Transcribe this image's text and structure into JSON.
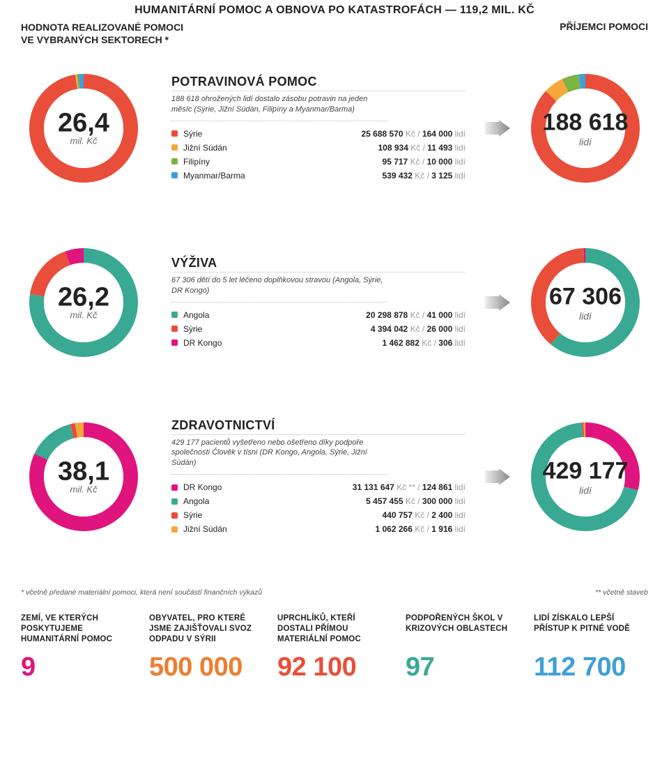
{
  "colors": {
    "red": "#e94e3a",
    "teal": "#3aa994",
    "yellow": "#f4a83b",
    "orange": "#ef7d2f",
    "green": "#7cb342",
    "blue": "#3f9fd9",
    "magenta": "#e0147d",
    "gray_text": "#555555",
    "light_text": "#999999"
  },
  "header": {
    "title": "HUMANITÁRNÍ POMOC A OBNOVA PO KATASTROFÁCH — 119,2 MIL. KČ",
    "left_line1": "HODNOTA REALIZOVANÉ POMOCI",
    "left_line2": "VE VYBRANÝCH SEKTORECH *",
    "right": "PŘÍJEMCI POMOCI"
  },
  "sections": [
    {
      "value": "26,4",
      "value_unit": "mil. Kč",
      "value_slices": [
        {
          "color": "#e94e3a",
          "pct": 97.5
        },
        {
          "color": "#f4a83b",
          "pct": 0.5
        },
        {
          "color": "#7cb342",
          "pct": 0.5
        },
        {
          "color": "#3f9fd9",
          "pct": 1.5
        }
      ],
      "title": "POTRAVINOVÁ POMOC",
      "desc": "188 618 ohrožených lidí dostalo zásobu potravin na jeden měsíc (Sýrie, Jižní Súdán, Filipíny a Myanmar/Barma)",
      "rows": [
        {
          "sw": "#e94e3a",
          "country": "Sýrie",
          "kc": "25 688 570",
          "lidi": "164 000"
        },
        {
          "sw": "#f4a83b",
          "country": "Jižní Súdán",
          "kc": "108 934",
          "lidi": "11 493"
        },
        {
          "sw": "#7cb342",
          "country": "Filipíny",
          "kc": "95 717",
          "lidi": "10 000"
        },
        {
          "sw": "#3f9fd9",
          "country": "Myanmar/Barma",
          "kc": "539 432",
          "lidi": "3 125"
        }
      ],
      "people": "188 618",
      "people_unit": "lidí",
      "people_slices": [
        {
          "color": "#e94e3a",
          "pct": 87
        },
        {
          "color": "#f4a83b",
          "pct": 6
        },
        {
          "color": "#7cb342",
          "pct": 5
        },
        {
          "color": "#3f9fd9",
          "pct": 2
        }
      ]
    },
    {
      "value": "26,2",
      "value_unit": "mil. Kč",
      "value_slices": [
        {
          "color": "#3aa994",
          "pct": 77.5
        },
        {
          "color": "#e94e3a",
          "pct": 17
        },
        {
          "color": "#e0147d",
          "pct": 5.5
        }
      ],
      "title": "VÝŽIVA",
      "desc": "67 306 dětí do 5 let léčeno doplňkovou stravou (Angola, Sýrie, DR Kongo)",
      "rows": [
        {
          "sw": "#3aa994",
          "country": "Angola",
          "kc": "20 298 878",
          "lidi": "41 000"
        },
        {
          "sw": "#e94e3a",
          "country": "Sýrie",
          "kc": "4 394 042",
          "lidi": "26 000"
        },
        {
          "sw": "#e0147d",
          "country": "DR Kongo",
          "kc": "1 462 882",
          "lidi": "306"
        }
      ],
      "people": "67 306",
      "people_unit": "lidí",
      "people_slices": [
        {
          "color": "#3aa994",
          "pct": 61
        },
        {
          "color": "#e94e3a",
          "pct": 38.5
        },
        {
          "color": "#e0147d",
          "pct": 0.5
        }
      ]
    },
    {
      "value": "38,1",
      "value_unit": "mil. Kč",
      "value_slices": [
        {
          "color": "#e0147d",
          "pct": 82
        },
        {
          "color": "#3aa994",
          "pct": 14
        },
        {
          "color": "#e94e3a",
          "pct": 1.5
        },
        {
          "color": "#f4a83b",
          "pct": 2.5
        }
      ],
      "title": "ZDRAVOTNICTVÍ",
      "desc": "429 177 pacientů vyšetřeno nebo ošetřeno díky podpoře společnosti Člověk v tísni (DR Kongo, Angola, Sýrie, Jižní Súdán)",
      "rows": [
        {
          "sw": "#e0147d",
          "country": "DR Kongo",
          "kc": "31 131 647",
          "kc_sup": "**",
          "lidi": "124 861"
        },
        {
          "sw": "#3aa994",
          "country": "Angola",
          "kc": "5 457 455",
          "lidi": "300 000"
        },
        {
          "sw": "#e94e3a",
          "country": "Sýrie",
          "kc": "440 757",
          "lidi": "2 400"
        },
        {
          "sw": "#f4a83b",
          "country": "Jižní Súdán",
          "kc": "1 062 266",
          "lidi": "1 916"
        }
      ],
      "people": "429 177",
      "people_unit": "lidí",
      "people_slices": [
        {
          "color": "#e0147d",
          "pct": 29
        },
        {
          "color": "#3aa994",
          "pct": 70
        },
        {
          "color": "#e94e3a",
          "pct": 0.5
        },
        {
          "color": "#f4a83b",
          "pct": 0.5
        }
      ]
    }
  ],
  "footnotes": {
    "left": "* včetně předané materiální pomoci, která není součástí finančních výkazů",
    "right": "** včetně staveb"
  },
  "stats": [
    {
      "label": "ZEMÍ, VE KTERÝCH POSKYTUJEME HUMANITÁRNÍ POMOC",
      "num": "9",
      "color": "#e0147d"
    },
    {
      "label": "OBYVATEL, PRO KTERÉ JSME ZAJIŠŤOVALI SVOZ ODPADU V SÝRII",
      "num": "500 000",
      "color": "#ef7d2f"
    },
    {
      "label": "UPRCHLÍKŮ, KTEŘÍ DOSTALI PŘÍMOU MATERIÁLNÍ POMOC",
      "num": "92 100",
      "color": "#e94e3a"
    },
    {
      "label": "PODPOŘENÝCH ŠKOL V KRIZOVÝCH OBLASTECH",
      "num": "97",
      "color": "#3aa994"
    },
    {
      "label": "LIDÍ ZÍSKALO LEPŠÍ PŘÍSTUP K PITNÉ VODĚ",
      "num": "112 700",
      "color": "#3f9fd9"
    }
  ],
  "donut_geom": {
    "r_outer": 78,
    "r_inner": 57,
    "bg": "#ffffff"
  }
}
